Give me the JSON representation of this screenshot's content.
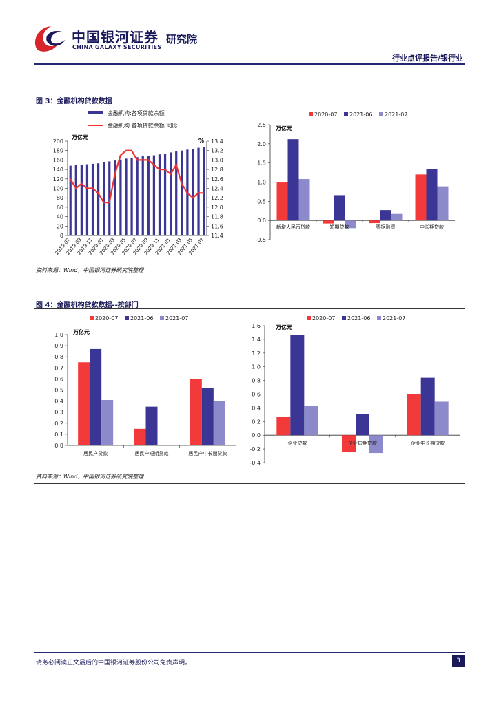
{
  "header": {
    "brand_cn": "中国银河证券",
    "brand_en": "CHINA GALAXY SECURITIES",
    "brand_inst": "研究院",
    "report_type": "行业点评报告/银行业"
  },
  "figure3": {
    "title": "图 3：金融机构贷款数据",
    "source": "资料来源：Wind，中国银河证券研究院整理"
  },
  "figure4": {
    "title": "图 4：金融机构贷款数据--按部门",
    "source": "资料来源：Wind，中国银河证券研究院整理"
  },
  "footer": {
    "disclaimer": "请务必阅读正文最后的中国银河证券股份公司免责声明。",
    "page": "3"
  },
  "colors": {
    "bar_primary": "#3b3595",
    "line_red": "#ee3333",
    "s2020": "#f23a3a",
    "s2021_06": "#3b3595",
    "s2021_07": "#8d8acb",
    "brand": "#1a1a5a"
  },
  "chart_data": [
    {
      "type": "bar+line",
      "unit_left": "万亿元",
      "unit_right": "%",
      "categories": [
        "2019-07",
        "2019-08",
        "2019-09",
        "2019-10",
        "2019-11",
        "2019-12",
        "2020-01",
        "2020-02",
        "2020-03",
        "2020-04",
        "2020-05",
        "2020-06",
        "2020-07",
        "2020-08",
        "2020-09",
        "2020-10",
        "2020-11",
        "2020-12",
        "2021-01",
        "2021-02",
        "2021-03",
        "2021-04",
        "2021-05",
        "2021-06",
        "2021-07"
      ],
      "tick_labels": [
        "2019-07",
        "2019-09",
        "2019-11",
        "2020-01",
        "2020-03",
        "2020-05",
        "2020-07",
        "2020-09",
        "2020-11",
        "2021-01",
        "2021-03",
        "2021-05",
        "2021-07"
      ],
      "series": [
        {
          "name": "金融机构:各项贷款余额",
          "axis": "left",
          "kind": "bar",
          "values": [
            148,
            149,
            150,
            151,
            152,
            153,
            156,
            157,
            159,
            161,
            163,
            165,
            166,
            168,
            169,
            170,
            172,
            173,
            176,
            178,
            180,
            182,
            183,
            186,
            187
          ]
        },
        {
          "name": "金融机构:各项贷款余额:同比",
          "axis": "right",
          "kind": "line",
          "values": [
            12.6,
            12.4,
            12.5,
            12.4,
            12.4,
            12.3,
            12.1,
            12.1,
            12.7,
            13.1,
            13.2,
            13.2,
            13.0,
            13.0,
            13.0,
            12.9,
            12.8,
            12.8,
            12.7,
            12.9,
            12.5,
            12.3,
            12.2,
            12.3,
            12.3
          ]
        }
      ],
      "ylim_left": [
        0,
        200
      ],
      "yticks_left": [
        "0",
        "20",
        "40",
        "60",
        "80",
        "100",
        "120",
        "140",
        "160",
        "180",
        "200"
      ],
      "ylim_right": [
        11.4,
        13.4
      ],
      "yticks_right": [
        "11.4",
        "11.6",
        "11.8",
        "12.0",
        "12.2",
        "12.4",
        "12.6",
        "12.8",
        "13.0",
        "13.2",
        "13.4"
      ]
    },
    {
      "type": "bar",
      "unit": "万亿元",
      "categories": [
        "新增人民币贷款",
        "短期贷款",
        "票据融资",
        "中长期贷款"
      ],
      "series": [
        {
          "name": "2020-07",
          "values": [
            0.99,
            -0.08,
            -0.07,
            1.2
          ]
        },
        {
          "name": "2021-06",
          "values": [
            2.12,
            0.66,
            0.27,
            1.35
          ]
        },
        {
          "name": "2021-07",
          "values": [
            1.08,
            -0.2,
            0.17,
            0.89
          ]
        }
      ],
      "ylim": [
        -0.5,
        2.5
      ],
      "yticks": [
        "-0.5",
        "0.0",
        "0.5",
        "1.0",
        "1.5",
        "2.0",
        "2.5"
      ]
    },
    {
      "type": "bar",
      "unit": "万亿元",
      "categories": [
        "居民户贷款",
        "居民户短期贷款",
        "居民户中长期贷款"
      ],
      "series": [
        {
          "name": "2020-07",
          "values": [
            0.75,
            0.15,
            0.6
          ]
        },
        {
          "name": "2021-06",
          "values": [
            0.87,
            0.35,
            0.52
          ]
        },
        {
          "name": "2021-07",
          "values": [
            0.41,
            0.0,
            0.4
          ]
        }
      ],
      "ylim": [
        0,
        1.0
      ],
      "yticks": [
        "0.0",
        "0.1",
        "0.2",
        "0.3",
        "0.4",
        "0.5",
        "0.6",
        "0.7",
        "0.8",
        "0.9",
        "1.0"
      ]
    },
    {
      "type": "bar",
      "unit": "万亿元",
      "categories": [
        "企业贷款",
        "企业短期贷款",
        "企业中长期贷款"
      ],
      "series": [
        {
          "name": "2020-07",
          "values": [
            0.27,
            -0.24,
            0.6
          ]
        },
        {
          "name": "2021-06",
          "values": [
            1.46,
            0.31,
            0.84
          ]
        },
        {
          "name": "2021-07",
          "values": [
            0.43,
            -0.26,
            0.49
          ]
        }
      ],
      "ylim": [
        -0.4,
        1.6
      ],
      "yticks": [
        "-0.4",
        "-0.2",
        "0.0",
        "0.2",
        "0.4",
        "0.6",
        "0.8",
        "1.0",
        "1.2",
        "1.4",
        "1.6"
      ]
    }
  ]
}
